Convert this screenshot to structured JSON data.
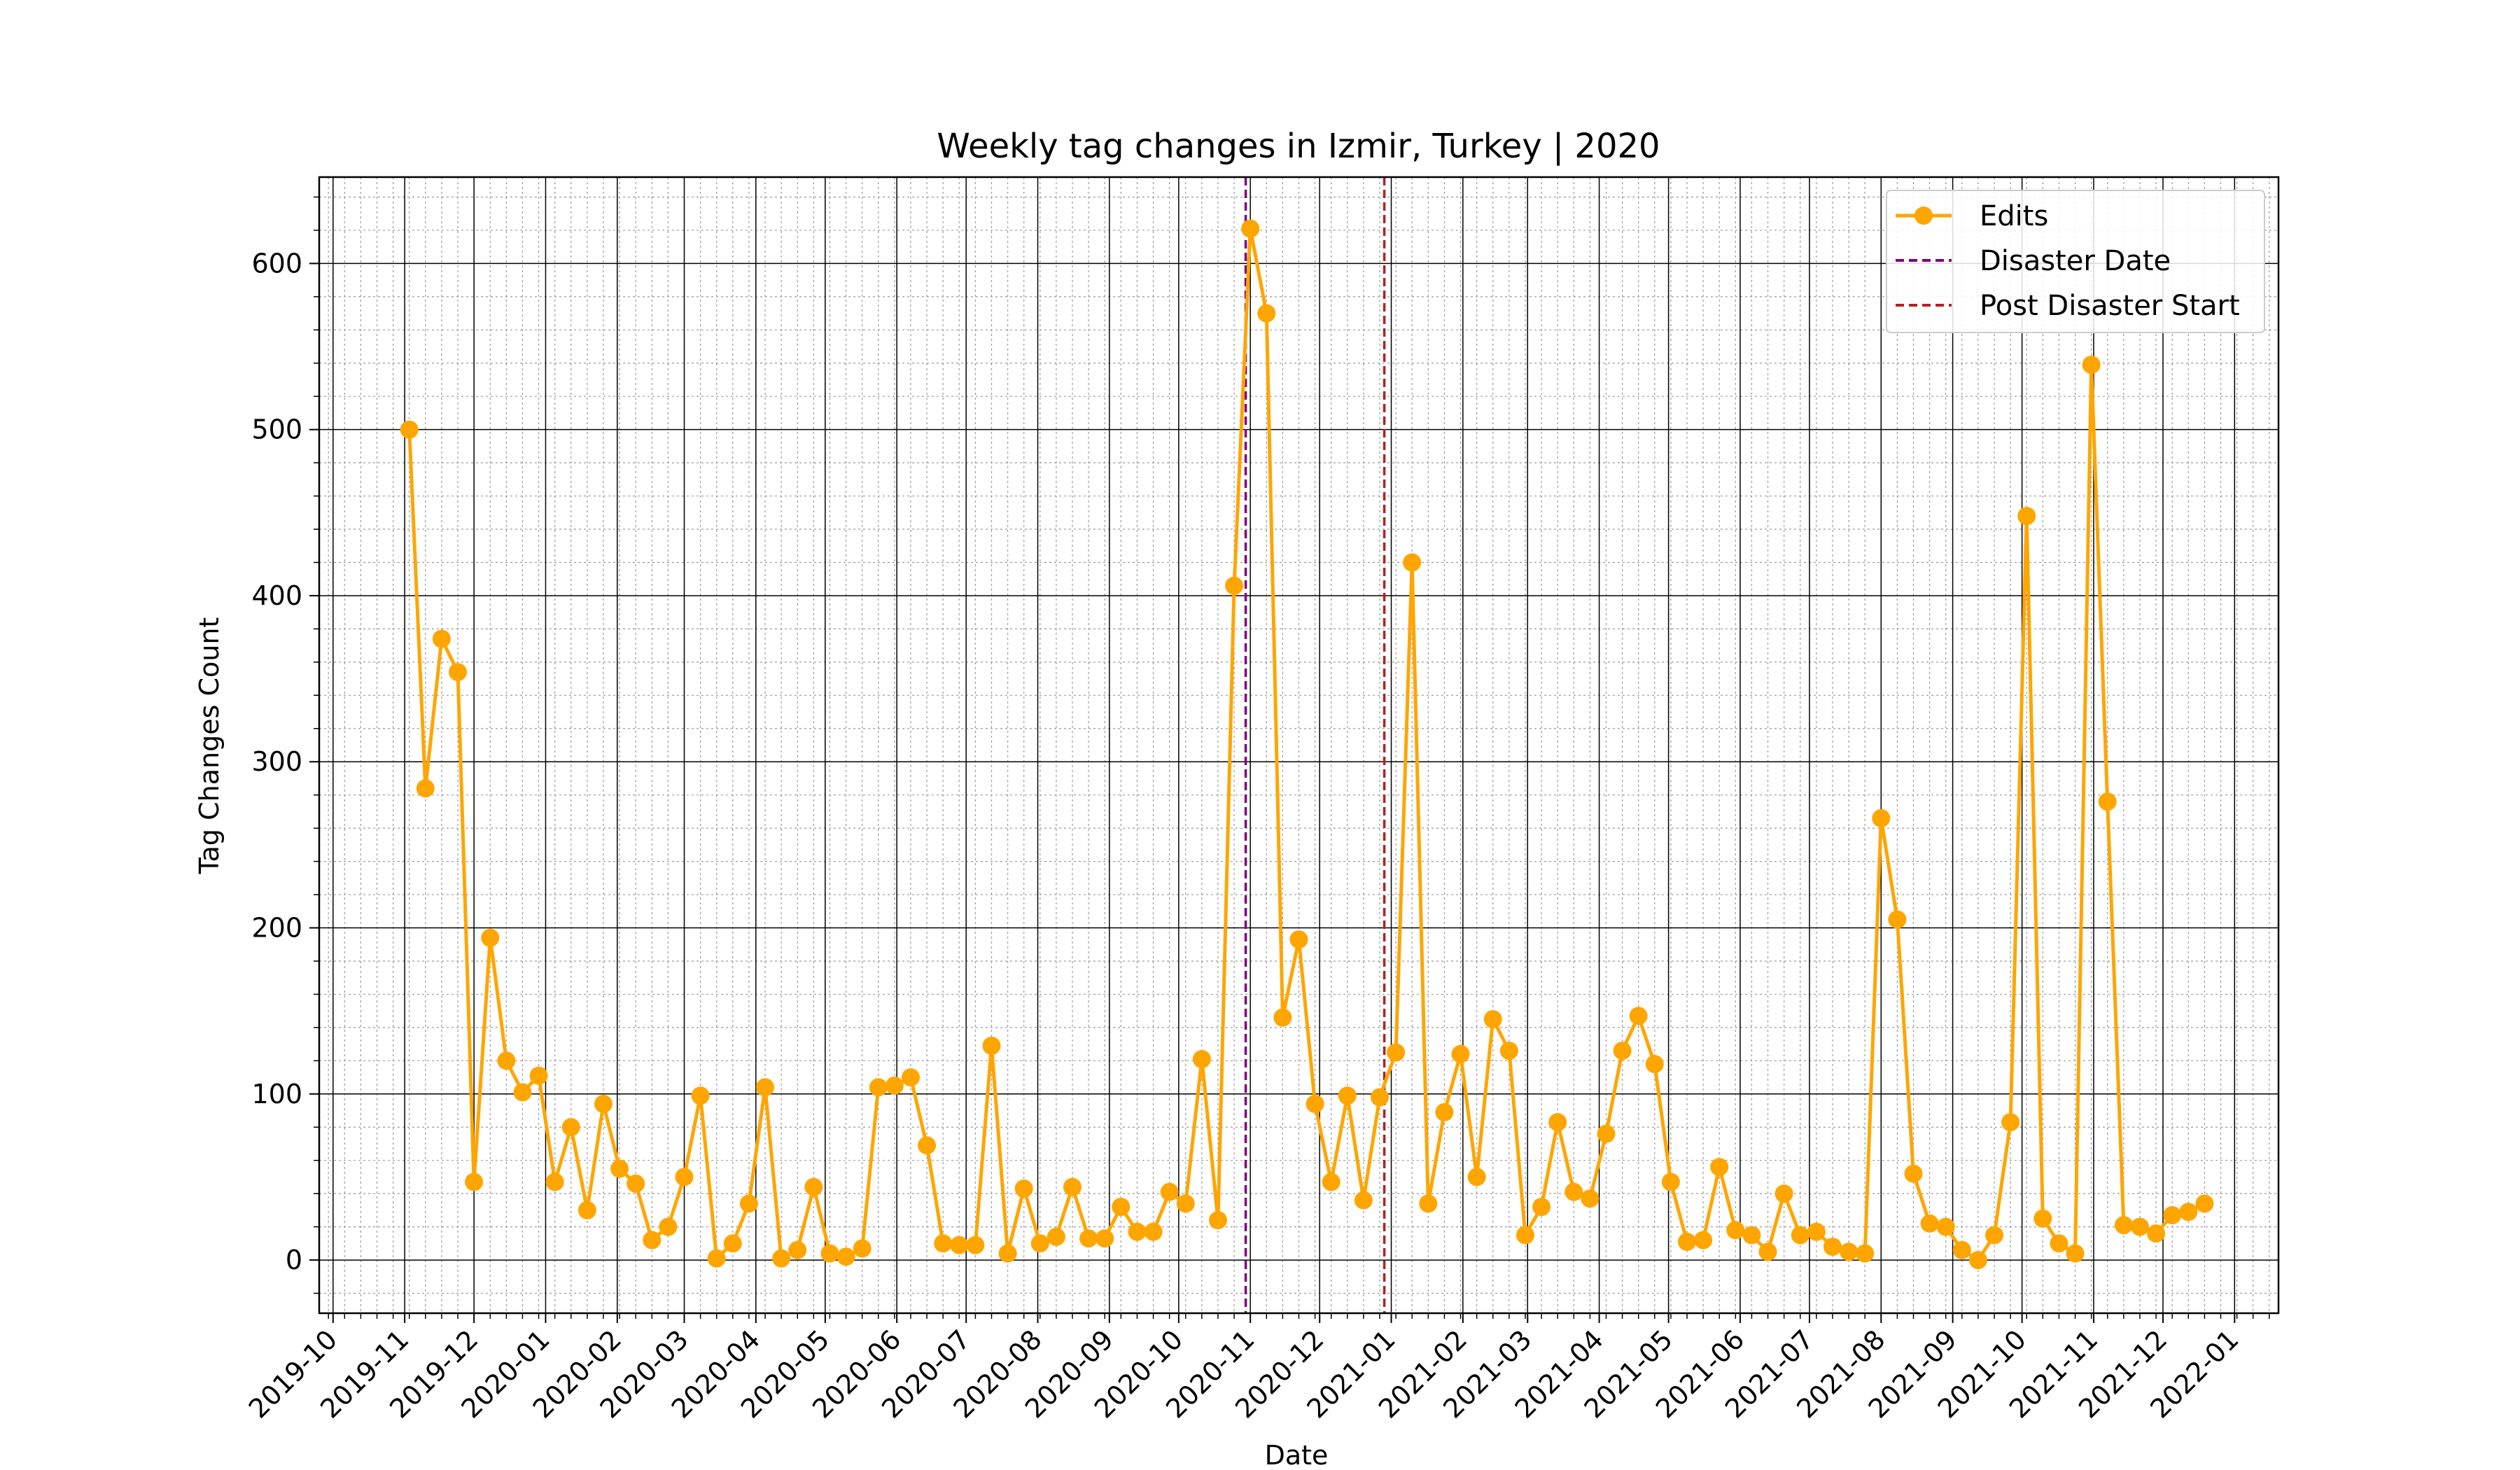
{
  "chart_data": {
    "type": "line",
    "title": "Weekly tag changes in Izmir, Turkey | 2020",
    "xlabel": "Date",
    "ylabel": "Tag Changes Count",
    "xlim": [
      "2019-09-25",
      "2022-01-20"
    ],
    "ylim": [
      -32,
      652
    ],
    "yticks": [
      0,
      100,
      200,
      300,
      400,
      500,
      600
    ],
    "xticks": [
      "2019-10",
      "2019-11",
      "2019-12",
      "2020-01",
      "2020-02",
      "2020-03",
      "2020-04",
      "2020-05",
      "2020-06",
      "2020-07",
      "2020-08",
      "2020-09",
      "2020-10",
      "2020-11",
      "2020-12",
      "2021-01",
      "2021-02",
      "2021-03",
      "2021-04",
      "2021-05",
      "2021-06",
      "2021-07",
      "2021-08",
      "2021-09",
      "2021-10",
      "2021-11",
      "2021-12",
      "2022-01"
    ],
    "grid": true,
    "legend_position": "upper right",
    "colors": {
      "edits": "#FFA500",
      "disaster": "#800080",
      "post": "#B22222"
    },
    "series": [
      {
        "name": "Edits",
        "x": [
          "2019-11-03",
          "2019-11-10",
          "2019-11-17",
          "2019-11-24",
          "2019-12-01",
          "2019-12-08",
          "2019-12-15",
          "2019-12-22",
          "2019-12-29",
          "2020-01-05",
          "2020-01-12",
          "2020-01-19",
          "2020-01-26",
          "2020-02-02",
          "2020-02-09",
          "2020-02-16",
          "2020-02-23",
          "2020-03-01",
          "2020-03-08",
          "2020-03-15",
          "2020-03-22",
          "2020-03-29",
          "2020-04-05",
          "2020-04-12",
          "2020-04-19",
          "2020-04-26",
          "2020-05-03",
          "2020-05-10",
          "2020-05-17",
          "2020-05-24",
          "2020-05-31",
          "2020-06-07",
          "2020-06-14",
          "2020-06-21",
          "2020-06-28",
          "2020-07-05",
          "2020-07-12",
          "2020-07-19",
          "2020-07-26",
          "2020-08-02",
          "2020-08-09",
          "2020-08-16",
          "2020-08-23",
          "2020-08-30",
          "2020-09-06",
          "2020-09-13",
          "2020-09-20",
          "2020-09-27",
          "2020-10-04",
          "2020-10-11",
          "2020-10-18",
          "2020-10-25",
          "2020-11-01",
          "2020-11-08",
          "2020-11-15",
          "2020-11-22",
          "2020-11-29",
          "2020-12-06",
          "2020-12-13",
          "2020-12-20",
          "2020-12-27",
          "2021-01-03",
          "2021-01-10",
          "2021-01-17",
          "2021-01-24",
          "2021-01-31",
          "2021-02-07",
          "2021-02-14",
          "2021-02-21",
          "2021-02-28",
          "2021-03-07",
          "2021-03-14",
          "2021-03-21",
          "2021-03-28",
          "2021-04-04",
          "2021-04-11",
          "2021-04-18",
          "2021-04-25",
          "2021-05-02",
          "2021-05-09",
          "2021-05-16",
          "2021-05-23",
          "2021-05-30",
          "2021-06-06",
          "2021-06-13",
          "2021-06-20",
          "2021-06-27",
          "2021-07-04",
          "2021-07-11",
          "2021-07-18",
          "2021-07-25",
          "2021-08-01",
          "2021-08-08",
          "2021-08-15",
          "2021-08-22",
          "2021-08-29",
          "2021-09-05",
          "2021-09-12",
          "2021-09-19",
          "2021-09-26",
          "2021-10-03",
          "2021-10-10",
          "2021-10-17",
          "2021-10-24",
          "2021-10-31",
          "2021-11-07",
          "2021-11-14",
          "2021-11-21",
          "2021-11-28",
          "2021-12-05",
          "2021-12-12",
          "2021-12-19"
        ],
        "y": [
          500,
          284,
          374,
          354,
          47,
          194,
          120,
          101,
          111,
          47,
          80,
          30,
          94,
          55,
          46,
          12,
          20,
          50,
          99,
          1,
          10,
          34,
          104,
          1,
          6,
          44,
          4,
          2,
          7,
          104,
          105,
          110,
          69,
          10,
          9,
          9,
          129,
          4,
          43,
          10,
          14,
          44,
          13,
          13,
          32,
          17,
          17,
          41,
          34,
          121,
          24,
          406,
          621,
          570,
          146,
          193,
          94,
          47,
          99,
          36,
          98,
          125,
          420,
          34,
          89,
          124,
          50,
          145,
          126,
          15,
          32,
          83,
          41,
          37,
          76,
          126,
          147,
          118,
          47,
          11,
          12,
          56,
          18,
          15,
          5,
          40,
          15,
          17,
          8,
          5,
          4,
          266,
          205,
          52,
          22,
          20,
          6,
          0,
          15,
          83,
          448,
          25,
          10,
          4,
          539,
          276,
          21,
          20,
          16,
          27,
          29,
          34
        ]
      },
      {
        "name": "Disaster Date",
        "x": "2020-10-30",
        "style": "dashed vertical line"
      },
      {
        "name": "Post Disaster Start",
        "x": "2020-12-29",
        "style": "dashed vertical line"
      }
    ]
  }
}
